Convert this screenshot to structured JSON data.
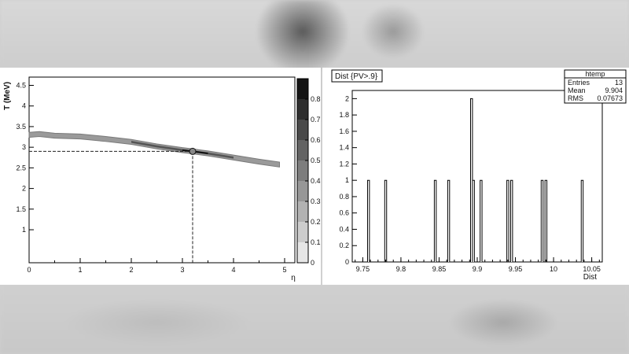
{
  "chart_data": [
    {
      "type": "heatmap",
      "ylabel": "T (MeV)",
      "xlabel": "η",
      "xlim": [
        0,
        5.2
      ],
      "ylim": [
        0.2,
        4.7
      ],
      "x_ticks": [
        "0",
        "1",
        "2",
        "3",
        "4",
        "5"
      ],
      "y_ticks": [
        "1",
        "1.5",
        "2",
        "2.5",
        "3",
        "3.5",
        "4",
        "4.5"
      ],
      "colorbar_ticks": [
        "0",
        "0.1",
        "0.2",
        "0.3",
        "0.4",
        "0.5",
        "0.6",
        "0.7",
        "0.8"
      ],
      "colorbar_range": [
        0,
        0.9
      ],
      "band": [
        {
          "x": 0.0,
          "y": 3.3
        },
        {
          "x": 0.2,
          "y": 3.32
        },
        {
          "x": 0.5,
          "y": 3.28
        },
        {
          "x": 1.0,
          "y": 3.26
        },
        {
          "x": 1.5,
          "y": 3.2
        },
        {
          "x": 2.0,
          "y": 3.13
        },
        {
          "x": 2.5,
          "y": 3.02
        },
        {
          "x": 3.0,
          "y": 2.93
        },
        {
          "x": 3.2,
          "y": 2.9
        },
        {
          "x": 3.5,
          "y": 2.85
        },
        {
          "x": 4.0,
          "y": 2.75
        },
        {
          "x": 4.5,
          "y": 2.65
        },
        {
          "x": 4.9,
          "y": 2.58
        }
      ],
      "marker": {
        "x": 3.2,
        "y": 2.9
      }
    },
    {
      "type": "bar",
      "title": "Dist {PV>.9}",
      "xlabel": "Dist",
      "xlim": [
        9.7362,
        10.0638
      ],
      "ylim": [
        0,
        2.1
      ],
      "x_ticks": [
        "9.75",
        "9.8",
        "9.85",
        "9.9",
        "9.95",
        "10",
        "10.05"
      ],
      "y_ticks": [
        "0",
        "0.2",
        "0.4",
        "0.6",
        "0.8",
        "1",
        "1.2",
        "1.4",
        "1.6",
        "1.8",
        "2"
      ],
      "bin_width": 0.0025,
      "bins": [
        {
          "x": 9.7575,
          "value": 1
        },
        {
          "x": 9.78,
          "value": 1
        },
        {
          "x": 9.845,
          "value": 1
        },
        {
          "x": 9.8625,
          "value": 1
        },
        {
          "x": 9.8925,
          "value": 2
        },
        {
          "x": 9.895,
          "value": 1
        },
        {
          "x": 9.905,
          "value": 1
        },
        {
          "x": 9.94,
          "value": 1
        },
        {
          "x": 9.945,
          "value": 1
        },
        {
          "x": 9.985,
          "value": 1
        },
        {
          "x": 9.99,
          "value": 1
        },
        {
          "x": 10.0375,
          "value": 1
        }
      ],
      "stats": {
        "title": "htemp",
        "rows": [
          {
            "label": "Entries",
            "value": "13"
          },
          {
            "label": "Mean",
            "value": "9.904"
          },
          {
            "label": "RMS",
            "value": "0.07673"
          }
        ]
      }
    }
  ]
}
